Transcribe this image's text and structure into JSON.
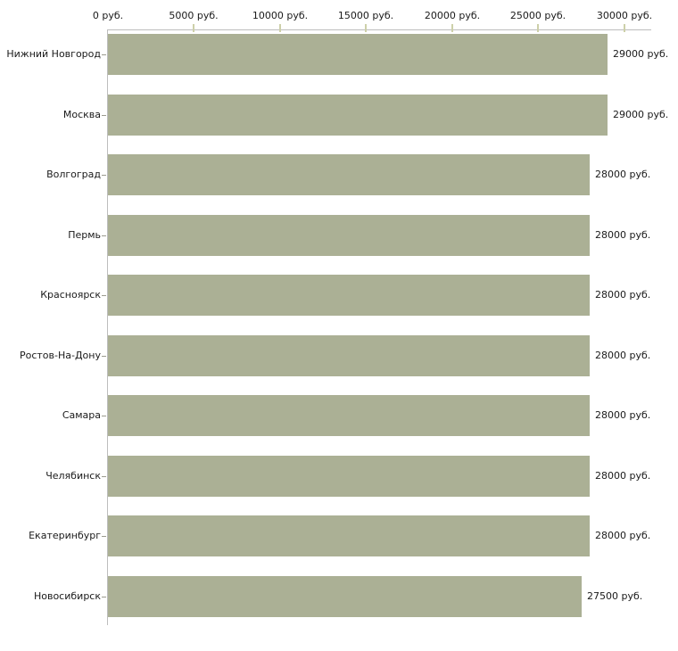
{
  "chart_data": {
    "type": "bar",
    "orientation": "horizontal",
    "title": "",
    "xlabel": "",
    "ylabel": "",
    "xlim": [
      0,
      30000
    ],
    "grid": "off",
    "legend": "none",
    "categories": [
      "Нижний Новгород",
      "Москва",
      "Волгоград",
      "Пермь",
      "Красноярск",
      "Ростов-На-Дону",
      "Самара",
      "Челябинск",
      "Екатеринбург",
      "Новосибирск"
    ],
    "values": [
      29000,
      29000,
      28000,
      28000,
      28000,
      28000,
      28000,
      28000,
      28000,
      27500
    ],
    "value_labels": [
      "29000 руб.",
      "29000 руб.",
      "28000 руб.",
      "28000 руб.",
      "28000 руб.",
      "28000 руб.",
      "28000 руб.",
      "28000 руб.",
      "28000 руб.",
      "27500 руб."
    ],
    "x_ticks": [
      {
        "value": 0,
        "label": "0 руб."
      },
      {
        "value": 5000,
        "label": "5000 руб."
      },
      {
        "value": 10000,
        "label": "10000 руб."
      },
      {
        "value": 15000,
        "label": "15000 руб."
      },
      {
        "value": 20000,
        "label": "20000 руб."
      },
      {
        "value": 25000,
        "label": "25000 руб."
      },
      {
        "value": 30000,
        "label": "30000 руб."
      }
    ],
    "colors": {
      "bar_fill": "#abb095",
      "axis_line": "#bdbdbd",
      "x_tick_mark": "#cdd0a9",
      "category_tick": "#9b9b8f",
      "text": "#1a1a1a",
      "background": "#ffffff"
    }
  }
}
